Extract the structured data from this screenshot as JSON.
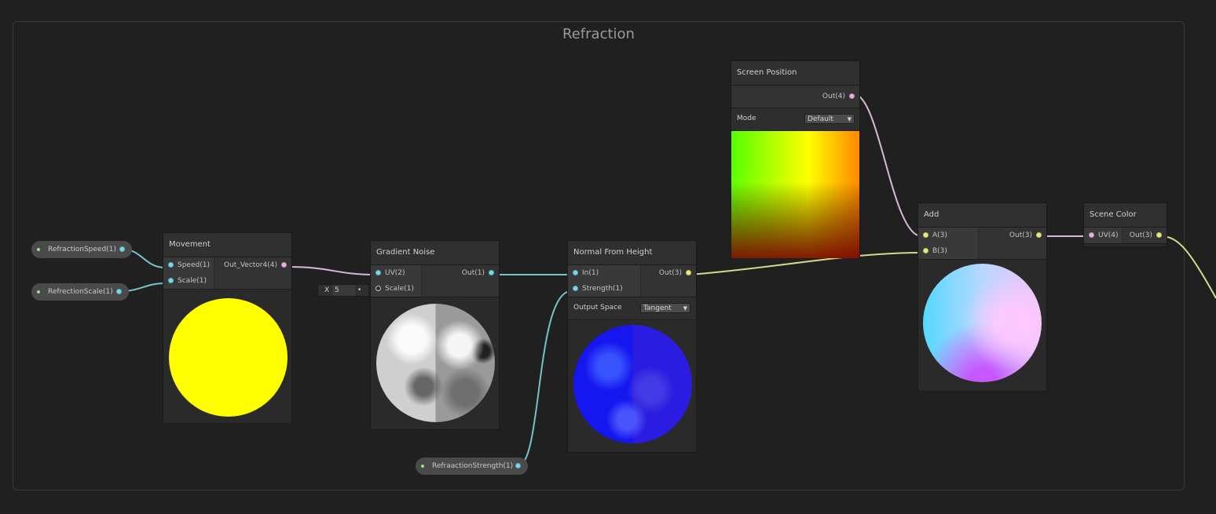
{
  "group": {
    "title": "Refraction"
  },
  "properties": {
    "refraction_speed": "RefractionSpeed(1)",
    "refraction_scale": "RefrectionScale(1)",
    "refraction_strength": "RefraactionStrength(1)"
  },
  "nodes": {
    "movement": {
      "title": "Movement",
      "inputs": [
        "Speed(1)",
        "Scale(1)"
      ],
      "outputs": [
        "Out_Vector4(4)"
      ]
    },
    "gradient_noise": {
      "title": "Gradient Noise",
      "inputs": [
        "UV(2)",
        "Scale(1)"
      ],
      "outputs": [
        "Out(1)"
      ],
      "scale_input": {
        "axis": "X",
        "value": "5"
      }
    },
    "normal_from_height": {
      "title": "Normal From Height",
      "inputs": [
        "In(1)",
        "Strength(1)"
      ],
      "outputs": [
        "Out(3)"
      ],
      "output_space_label": "Output Space",
      "output_space_value": "Tangent"
    },
    "screen_position": {
      "title": "Screen Position",
      "outputs": [
        "Out(4)"
      ],
      "mode_label": "Mode",
      "mode_value": "Default"
    },
    "add": {
      "title": "Add",
      "inputs": [
        "A(3)",
        "B(3)"
      ],
      "outputs": [
        "Out(3)"
      ]
    },
    "scene_color": {
      "title": "Scene Color",
      "inputs": [
        "UV(4)"
      ],
      "outputs": [
        "Out(3)"
      ]
    }
  },
  "colors": {
    "background": "#202020",
    "node_body": "#2a2a2a",
    "wire_float": "#76c2cc",
    "wire_vector3": "#d6d88a",
    "wire_vector4": "#d8b8d8",
    "property_dot": "#9be28f"
  }
}
